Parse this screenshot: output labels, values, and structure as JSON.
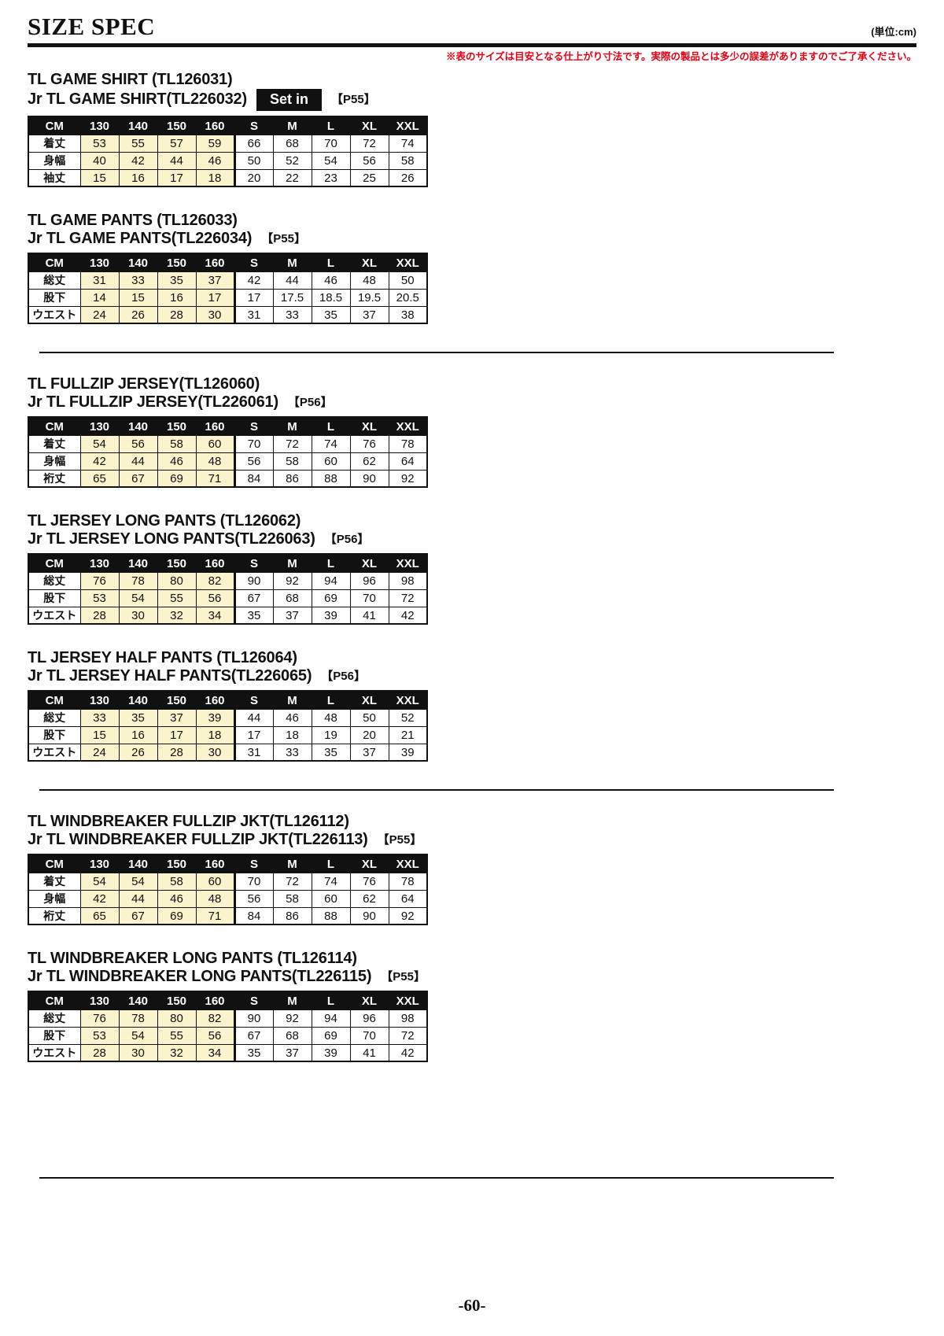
{
  "page": {
    "title": "SIZE SPEC",
    "unit_note": "(単位:cm)",
    "disclaimer": "※表のサイズは目安となる仕上がり寸法です。実際の製品とは多少の誤差がありますのでご了承ください。",
    "page_number": "-60-"
  },
  "colors": {
    "junior_bg": "#faf3cc",
    "note_red": "#e60012",
    "header_bg": "#111111"
  },
  "table_header": [
    "CM",
    "130",
    "140",
    "150",
    "160",
    "S",
    "M",
    "L",
    "XL",
    "XXL"
  ],
  "sections": [
    {
      "title1": "TL GAME SHIRT (TL126031)",
      "title2": "Jr TL GAME SHIRT(TL226032)",
      "badge": "Set in",
      "page_ref": "【P55】",
      "rows": [
        {
          "label": "着丈",
          "values": [
            "53",
            "55",
            "57",
            "59",
            "66",
            "68",
            "70",
            "72",
            "74"
          ]
        },
        {
          "label": "身幅",
          "values": [
            "40",
            "42",
            "44",
            "46",
            "50",
            "52",
            "54",
            "56",
            "58"
          ]
        },
        {
          "label": "袖丈",
          "values": [
            "15",
            "16",
            "17",
            "18",
            "20",
            "22",
            "23",
            "25",
            "26"
          ]
        }
      ],
      "divider_after": false
    },
    {
      "title1": "TL GAME PANTS (TL126033)",
      "title2": "Jr TL GAME PANTS(TL226034)",
      "badge": "",
      "page_ref": "【P55】",
      "rows": [
        {
          "label": "総丈",
          "values": [
            "31",
            "33",
            "35",
            "37",
            "42",
            "44",
            "46",
            "48",
            "50"
          ]
        },
        {
          "label": "股下",
          "values": [
            "14",
            "15",
            "16",
            "17",
            "17",
            "17.5",
            "18.5",
            "19.5",
            "20.5"
          ]
        },
        {
          "label": "ウエスト",
          "values": [
            "24",
            "26",
            "28",
            "30",
            "31",
            "33",
            "35",
            "37",
            "38"
          ]
        }
      ],
      "divider_after": true
    },
    {
      "title1": "TL FULLZIP JERSEY(TL126060)",
      "title2": "Jr TL FULLZIP JERSEY(TL226061)",
      "badge": "",
      "page_ref": "【P56】",
      "rows": [
        {
          "label": "着丈",
          "values": [
            "54",
            "56",
            "58",
            "60",
            "70",
            "72",
            "74",
            "76",
            "78"
          ]
        },
        {
          "label": "身幅",
          "values": [
            "42",
            "44",
            "46",
            "48",
            "56",
            "58",
            "60",
            "62",
            "64"
          ]
        },
        {
          "label": "裄丈",
          "values": [
            "65",
            "67",
            "69",
            "71",
            "84",
            "86",
            "88",
            "90",
            "92"
          ]
        }
      ],
      "divider_after": false
    },
    {
      "title1": "TL JERSEY LONG PANTS (TL126062)",
      "title2": "Jr TL JERSEY LONG PANTS(TL226063)",
      "badge": "",
      "page_ref": "【P56】",
      "rows": [
        {
          "label": "総丈",
          "values": [
            "76",
            "78",
            "80",
            "82",
            "90",
            "92",
            "94",
            "96",
            "98"
          ]
        },
        {
          "label": "股下",
          "values": [
            "53",
            "54",
            "55",
            "56",
            "67",
            "68",
            "69",
            "70",
            "72"
          ]
        },
        {
          "label": "ウエスト",
          "values": [
            "28",
            "30",
            "32",
            "34",
            "35",
            "37",
            "39",
            "41",
            "42"
          ]
        }
      ],
      "divider_after": false
    },
    {
      "title1": "TL JERSEY HALF PANTS (TL126064)",
      "title2": "Jr TL JERSEY HALF PANTS(TL226065)",
      "badge": "",
      "page_ref": "【P56】",
      "rows": [
        {
          "label": "総丈",
          "values": [
            "33",
            "35",
            "37",
            "39",
            "44",
            "46",
            "48",
            "50",
            "52"
          ]
        },
        {
          "label": "股下",
          "values": [
            "15",
            "16",
            "17",
            "18",
            "17",
            "18",
            "19",
            "20",
            "21"
          ]
        },
        {
          "label": "ウエスト",
          "values": [
            "24",
            "26",
            "28",
            "30",
            "31",
            "33",
            "35",
            "37",
            "39"
          ]
        }
      ],
      "divider_after": true
    },
    {
      "title1": "TL WINDBREAKER FULLZIP JKT(TL126112)",
      "title2": "Jr TL WINDBREAKER FULLZIP JKT(TL226113)",
      "badge": "",
      "page_ref": "【P55】",
      "rows": [
        {
          "label": "着丈",
          "values": [
            "54",
            "54",
            "58",
            "60",
            "70",
            "72",
            "74",
            "76",
            "78"
          ]
        },
        {
          "label": "身幅",
          "values": [
            "42",
            "44",
            "46",
            "48",
            "56",
            "58",
            "60",
            "62",
            "64"
          ]
        },
        {
          "label": "裄丈",
          "values": [
            "65",
            "67",
            "69",
            "71",
            "84",
            "86",
            "88",
            "90",
            "92"
          ]
        }
      ],
      "divider_after": false
    },
    {
      "title1": "TL WINDBREAKER LONG PANTS (TL126114)",
      "title2": "Jr TL WINDBREAKER LONG PANTS(TL226115)",
      "badge": "",
      "page_ref": "【P55】",
      "rows": [
        {
          "label": "総丈",
          "values": [
            "76",
            "78",
            "80",
            "82",
            "90",
            "92",
            "94",
            "96",
            "98"
          ]
        },
        {
          "label": "股下",
          "values": [
            "53",
            "54",
            "55",
            "56",
            "67",
            "68",
            "69",
            "70",
            "72"
          ]
        },
        {
          "label": "ウエスト",
          "values": [
            "28",
            "30",
            "32",
            "34",
            "35",
            "37",
            "39",
            "41",
            "42"
          ]
        }
      ],
      "divider_after": true
    }
  ]
}
